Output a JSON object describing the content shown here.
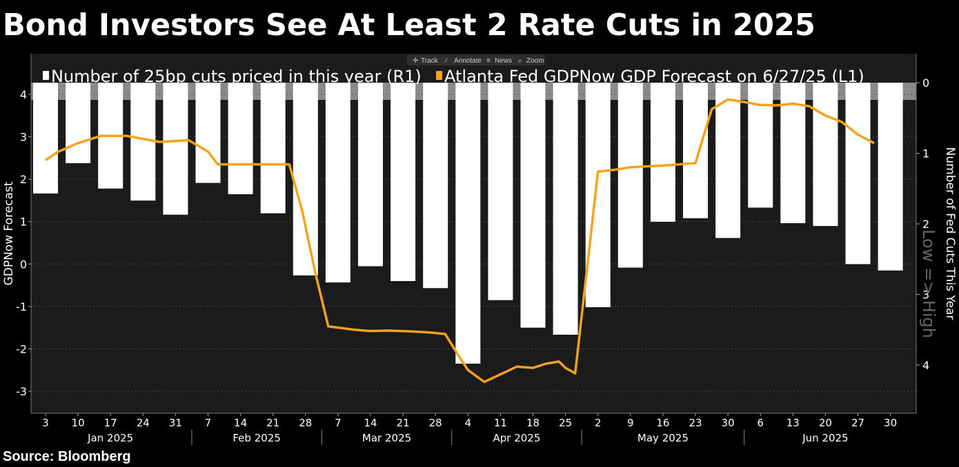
{
  "title": "Bond Investors See At Least 2 Rate Cuts in 2025",
  "source": "Source: Bloomberg",
  "toolbar": {
    "track": "Track",
    "annotate": "Annotate",
    "news": "News",
    "zoom": "Zoom"
  },
  "colors": {
    "background": "#000000",
    "plot_background": "#1b1b1b",
    "bars": "#ffffff",
    "line": "#f7a21b",
    "band": "#8a8a8a",
    "text": "#ffffff",
    "watermark": "#666666"
  },
  "chart_data": {
    "type": "bar+line",
    "title": "Bond Investors See At Least 2 Rate Cuts in 2025",
    "watermark": "Low => High",
    "x_tick_labels": [
      "3",
      "10",
      "17",
      "24",
      "31",
      "7",
      "14",
      "21",
      "28",
      "7",
      "14",
      "21",
      "28",
      "4",
      "11",
      "18",
      "25",
      "2",
      "9",
      "16",
      "23",
      "30",
      "6",
      "13",
      "20",
      "27",
      "30"
    ],
    "x_month_labels": [
      "Jan 2025",
      "Feb 2025",
      "Mar 2025",
      "Apr 2025",
      "May 2025",
      "Jun 2025"
    ],
    "left_axis": {
      "label": "GDPNow Forecast",
      "ticks": [
        "4",
        "3",
        "2",
        "1",
        "0",
        "-1",
        "-2",
        "-3"
      ],
      "range": [
        -3.4,
        4.3
      ]
    },
    "right_axis": {
      "label": "Number of Fed Cuts This Year",
      "ticks": [
        "0",
        "1",
        "2",
        "3",
        "4"
      ],
      "range": [
        0,
        4.5
      ],
      "inverted": true
    },
    "series": [
      {
        "name": "Number of 25bp cuts priced in this year (R1)",
        "type": "bar",
        "axis": "right",
        "values": [
          1.57,
          1.14,
          1.5,
          1.67,
          1.87,
          1.42,
          1.58,
          1.85,
          2.73,
          2.83,
          2.6,
          2.81,
          2.91,
          3.98,
          3.08,
          3.47,
          3.57,
          3.18,
          2.62,
          1.97,
          1.92,
          2.2,
          1.77,
          1.99,
          2.03,
          2.57,
          2.66
        ]
      },
      {
        "name": "Atlanta Fed GDPNow GDP Forecast  on 6/27/25 (L1)",
        "type": "line",
        "axis": "left",
        "x_positions": [
          0,
          0.4,
          1,
          1.7,
          2,
          2.5,
          3,
          3.5,
          4,
          4.4,
          5,
          5.3,
          5.7,
          6,
          6.5,
          7,
          7.5,
          7.9,
          8.3,
          8.7,
          9,
          9.5,
          10,
          10.5,
          11,
          11.5,
          11.9,
          12.3,
          12.7,
          13,
          13.5,
          14,
          14.5,
          15,
          15.4,
          15.8,
          16,
          16.3,
          17,
          17.5,
          18,
          18.4,
          19,
          19.5,
          20,
          20.5,
          21,
          21.5,
          22,
          22.5,
          23,
          23.5,
          24,
          24.5,
          25,
          25.5
        ],
        "values": [
          2.45,
          2.65,
          2.85,
          3.02,
          3.02,
          3.02,
          2.95,
          2.88,
          2.9,
          2.92,
          2.65,
          2.35,
          2.35,
          2.35,
          2.35,
          2.35,
          2.35,
          1.25,
          -0.2,
          -1.47,
          -1.5,
          -1.55,
          -1.58,
          -1.57,
          -1.58,
          -1.6,
          -1.62,
          -1.65,
          -2.15,
          -2.5,
          -2.78,
          -2.6,
          -2.42,
          -2.45,
          -2.35,
          -2.3,
          -2.45,
          -2.58,
          2.18,
          2.22,
          2.28,
          2.3,
          2.32,
          2.35,
          2.38,
          3.65,
          3.88,
          3.82,
          3.75,
          3.74,
          3.78,
          3.72,
          3.5,
          3.35,
          3.05,
          2.85
        ]
      }
    ]
  }
}
